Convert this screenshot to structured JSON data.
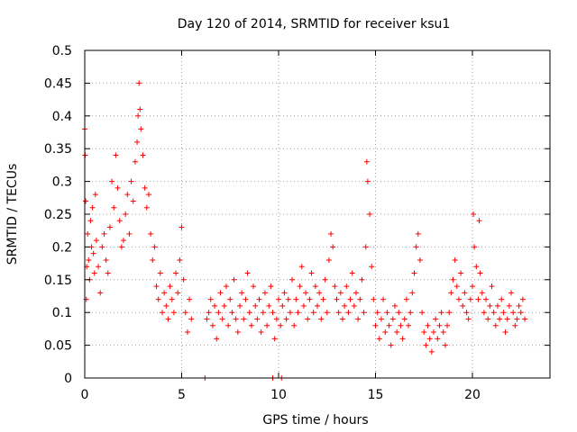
{
  "chart_data": {
    "type": "scatter",
    "title": "Day 120 of 2014, SRMTID for receiver ksu1",
    "xlabel": "GPS time / hours",
    "ylabel": "SRMTID / TECUs",
    "xlim": [
      0,
      24
    ],
    "ylim": [
      0,
      0.5
    ],
    "grid": true,
    "marker": "plus",
    "color": "#ff0000",
    "x_ticks": [
      0,
      5,
      10,
      15,
      20
    ],
    "x_tick_labels": [
      "0",
      "5",
      "10",
      "15",
      "20"
    ],
    "y_ticks": [
      0,
      0.05,
      0.1,
      0.15,
      0.2,
      0.25,
      0.3,
      0.35,
      0.4,
      0.45,
      0.5
    ],
    "y_tick_labels": [
      "0",
      "0.05",
      "0.1",
      "0.15",
      "0.2",
      "0.25",
      "0.3",
      "0.35",
      "0.4",
      "0.45",
      "0.5"
    ],
    "series": [
      {
        "name": "SRMTID",
        "points": [
          [
            0.0,
            0.38
          ],
          [
            0.02,
            0.34
          ],
          [
            0.05,
            0.27
          ],
          [
            0.08,
            0.12
          ],
          [
            0.1,
            0.17
          ],
          [
            0.15,
            0.22
          ],
          [
            0.2,
            0.18
          ],
          [
            0.25,
            0.15
          ],
          [
            0.3,
            0.24
          ],
          [
            0.35,
            0.2
          ],
          [
            0.4,
            0.26
          ],
          [
            0.45,
            0.19
          ],
          [
            0.5,
            0.16
          ],
          [
            0.55,
            0.28
          ],
          [
            0.6,
            0.21
          ],
          [
            0.7,
            0.17
          ],
          [
            0.8,
            0.13
          ],
          [
            0.9,
            0.2
          ],
          [
            1.0,
            0.22
          ],
          [
            1.1,
            0.18
          ],
          [
            1.2,
            0.16
          ],
          [
            1.3,
            0.23
          ],
          [
            1.4,
            0.3
          ],
          [
            1.5,
            0.26
          ],
          [
            1.6,
            0.34
          ],
          [
            1.7,
            0.29
          ],
          [
            1.8,
            0.24
          ],
          [
            1.9,
            0.2
          ],
          [
            2.0,
            0.21
          ],
          [
            2.1,
            0.25
          ],
          [
            2.2,
            0.28
          ],
          [
            2.3,
            0.22
          ],
          [
            2.4,
            0.3
          ],
          [
            2.5,
            0.27
          ],
          [
            2.6,
            0.33
          ],
          [
            2.7,
            0.36
          ],
          [
            2.75,
            0.4
          ],
          [
            2.8,
            0.45
          ],
          [
            2.85,
            0.41
          ],
          [
            2.9,
            0.38
          ],
          [
            3.0,
            0.34
          ],
          [
            3.1,
            0.29
          ],
          [
            3.2,
            0.26
          ],
          [
            3.3,
            0.28
          ],
          [
            3.4,
            0.22
          ],
          [
            3.5,
            0.18
          ],
          [
            3.6,
            0.2
          ],
          [
            3.7,
            0.14
          ],
          [
            3.8,
            0.12
          ],
          [
            3.9,
            0.16
          ],
          [
            4.0,
            0.1
          ],
          [
            4.1,
            0.13
          ],
          [
            4.2,
            0.11
          ],
          [
            4.3,
            0.09
          ],
          [
            4.4,
            0.14
          ],
          [
            4.5,
            0.12
          ],
          [
            4.6,
            0.1
          ],
          [
            4.7,
            0.16
          ],
          [
            4.8,
            0.13
          ],
          [
            4.9,
            0.18
          ],
          [
            5.0,
            0.23
          ],
          [
            5.1,
            0.15
          ],
          [
            5.2,
            0.1
          ],
          [
            5.3,
            0.07
          ],
          [
            5.4,
            0.12
          ],
          [
            5.5,
            0.09
          ],
          [
            6.3,
            0.09
          ],
          [
            6.4,
            0.1
          ],
          [
            6.5,
            0.12
          ],
          [
            6.6,
            0.08
          ],
          [
            6.7,
            0.11
          ],
          [
            6.8,
            0.06
          ],
          [
            6.9,
            0.1
          ],
          [
            7.0,
            0.13
          ],
          [
            7.1,
            0.09
          ],
          [
            7.2,
            0.11
          ],
          [
            7.3,
            0.14
          ],
          [
            7.4,
            0.08
          ],
          [
            7.5,
            0.12
          ],
          [
            7.6,
            0.1
          ],
          [
            7.7,
            0.15
          ],
          [
            7.8,
            0.09
          ],
          [
            7.9,
            0.07
          ],
          [
            8.0,
            0.11
          ],
          [
            8.1,
            0.13
          ],
          [
            8.2,
            0.09
          ],
          [
            8.3,
            0.12
          ],
          [
            8.4,
            0.16
          ],
          [
            8.5,
            0.1
          ],
          [
            8.6,
            0.08
          ],
          [
            8.7,
            0.14
          ],
          [
            8.8,
            0.11
          ],
          [
            8.9,
            0.09
          ],
          [
            9.0,
            0.12
          ],
          [
            9.1,
            0.07
          ],
          [
            9.2,
            0.1
          ],
          [
            9.3,
            0.13
          ],
          [
            9.4,
            0.08
          ],
          [
            9.5,
            0.11
          ],
          [
            9.6,
            0.14
          ],
          [
            9.7,
            0.1
          ],
          [
            9.8,
            0.06
          ],
          [
            9.9,
            0.09
          ],
          [
            10.0,
            0.12
          ],
          [
            10.1,
            0.08
          ],
          [
            10.2,
            0.11
          ],
          [
            10.3,
            0.13
          ],
          [
            10.4,
            0.09
          ],
          [
            10.5,
            0.12
          ],
          [
            10.6,
            0.1
          ],
          [
            10.7,
            0.15
          ],
          [
            10.8,
            0.08
          ],
          [
            10.9,
            0.12
          ],
          [
            11.0,
            0.1
          ],
          [
            11.1,
            0.14
          ],
          [
            11.2,
            0.17
          ],
          [
            11.3,
            0.11
          ],
          [
            11.4,
            0.13
          ],
          [
            11.5,
            0.09
          ],
          [
            11.6,
            0.12
          ],
          [
            11.7,
            0.16
          ],
          [
            11.8,
            0.1
          ],
          [
            11.9,
            0.14
          ],
          [
            12.0,
            0.11
          ],
          [
            12.1,
            0.13
          ],
          [
            12.2,
            0.09
          ],
          [
            12.3,
            0.12
          ],
          [
            12.4,
            0.15
          ],
          [
            12.5,
            0.1
          ],
          [
            12.6,
            0.18
          ],
          [
            12.7,
            0.22
          ],
          [
            12.8,
            0.2
          ],
          [
            12.9,
            0.14
          ],
          [
            13.0,
            0.12
          ],
          [
            13.1,
            0.1
          ],
          [
            13.2,
            0.13
          ],
          [
            13.3,
            0.09
          ],
          [
            13.4,
            0.11
          ],
          [
            13.5,
            0.14
          ],
          [
            13.6,
            0.1
          ],
          [
            13.7,
            0.12
          ],
          [
            13.8,
            0.16
          ],
          [
            13.9,
            0.11
          ],
          [
            14.0,
            0.13
          ],
          [
            14.1,
            0.09
          ],
          [
            14.2,
            0.12
          ],
          [
            14.3,
            0.15
          ],
          [
            14.4,
            0.1
          ],
          [
            14.5,
            0.2
          ],
          [
            14.55,
            0.33
          ],
          [
            14.6,
            0.3
          ],
          [
            14.7,
            0.25
          ],
          [
            14.8,
            0.17
          ],
          [
            14.9,
            0.12
          ],
          [
            15.0,
            0.08
          ],
          [
            15.1,
            0.1
          ],
          [
            15.2,
            0.06
          ],
          [
            15.3,
            0.09
          ],
          [
            15.4,
            0.12
          ],
          [
            15.5,
            0.07
          ],
          [
            15.6,
            0.1
          ],
          [
            15.7,
            0.08
          ],
          [
            15.8,
            0.05
          ],
          [
            15.9,
            0.09
          ],
          [
            16.0,
            0.11
          ],
          [
            16.1,
            0.07
          ],
          [
            16.2,
            0.1
          ],
          [
            16.3,
            0.08
          ],
          [
            16.4,
            0.06
          ],
          [
            16.5,
            0.09
          ],
          [
            16.6,
            0.12
          ],
          [
            16.7,
            0.08
          ],
          [
            16.8,
            0.1
          ],
          [
            16.9,
            0.13
          ],
          [
            17.0,
            0.16
          ],
          [
            17.1,
            0.2
          ],
          [
            17.2,
            0.22
          ],
          [
            17.3,
            0.18
          ],
          [
            17.4,
            0.1
          ],
          [
            17.5,
            0.07
          ],
          [
            17.6,
            0.05
          ],
          [
            17.7,
            0.08
          ],
          [
            17.8,
            0.06
          ],
          [
            17.9,
            0.04
          ],
          [
            18.0,
            0.07
          ],
          [
            18.1,
            0.09
          ],
          [
            18.2,
            0.06
          ],
          [
            18.3,
            0.08
          ],
          [
            18.4,
            0.1
          ],
          [
            18.5,
            0.07
          ],
          [
            18.6,
            0.05
          ],
          [
            18.7,
            0.08
          ],
          [
            18.8,
            0.1
          ],
          [
            18.9,
            0.13
          ],
          [
            19.0,
            0.15
          ],
          [
            19.1,
            0.18
          ],
          [
            19.2,
            0.14
          ],
          [
            19.3,
            0.12
          ],
          [
            19.4,
            0.16
          ],
          [
            19.5,
            0.11
          ],
          [
            19.6,
            0.13
          ],
          [
            19.7,
            0.1
          ],
          [
            19.8,
            0.09
          ],
          [
            19.9,
            0.12
          ],
          [
            20.0,
            0.14
          ],
          [
            20.05,
            0.25
          ],
          [
            20.1,
            0.2
          ],
          [
            20.2,
            0.17
          ],
          [
            20.3,
            0.12
          ],
          [
            20.35,
            0.24
          ],
          [
            20.4,
            0.16
          ],
          [
            20.5,
            0.13
          ],
          [
            20.6,
            0.1
          ],
          [
            20.7,
            0.12
          ],
          [
            20.8,
            0.09
          ],
          [
            20.9,
            0.11
          ],
          [
            21.0,
            0.14
          ],
          [
            21.1,
            0.1
          ],
          [
            21.2,
            0.08
          ],
          [
            21.3,
            0.11
          ],
          [
            21.4,
            0.09
          ],
          [
            21.5,
            0.12
          ],
          [
            21.6,
            0.1
          ],
          [
            21.7,
            0.07
          ],
          [
            21.8,
            0.09
          ],
          [
            21.9,
            0.11
          ],
          [
            22.0,
            0.13
          ],
          [
            22.1,
            0.1
          ],
          [
            22.2,
            0.08
          ],
          [
            22.3,
            0.09
          ],
          [
            22.4,
            0.11
          ],
          [
            22.5,
            0.1
          ],
          [
            22.6,
            0.12
          ],
          [
            22.7,
            0.09
          ],
          [
            6.2,
            0.0
          ],
          [
            9.7,
            0.0
          ],
          [
            10.15,
            0.0
          ]
        ]
      }
    ]
  }
}
